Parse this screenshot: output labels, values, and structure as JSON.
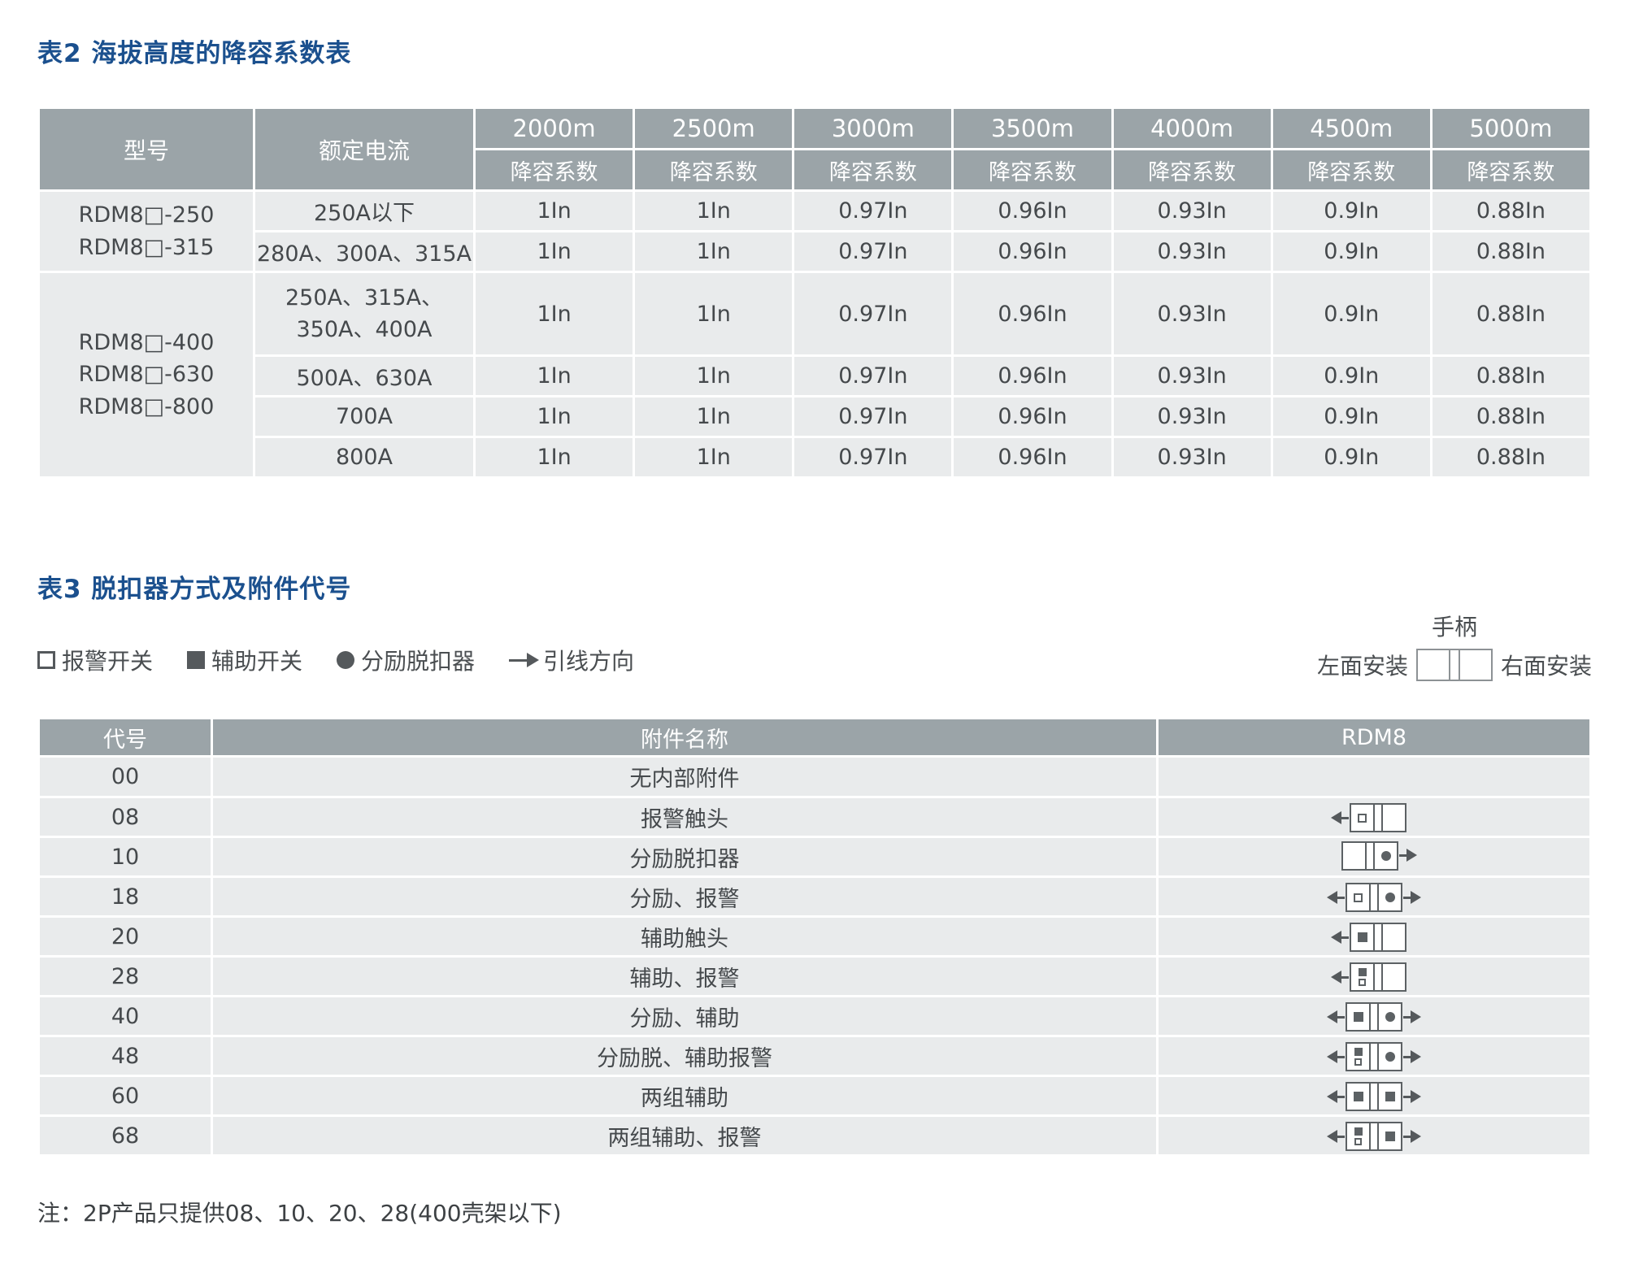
{
  "colors": {
    "title_blue": "#1b508e",
    "table_header_bg": "#9ba4a8",
    "table_row_bg": "#e9ebec",
    "symbol_gray": "#55595c"
  },
  "table2": {
    "title": "表2 海拔高度的降容系数表",
    "col_model": "型号",
    "col_current": "额定电流",
    "altitudes": [
      "2000m",
      "2500m",
      "3000m",
      "3500m",
      "4000m",
      "4500m",
      "5000m"
    ],
    "subheader": "降容系数",
    "groups": [
      {
        "model_text": "RDM8□-250\nRDM8□-315",
        "rows": [
          {
            "current": "250A以下",
            "values": [
              "1In",
              "1In",
              "0.97In",
              "0.96In",
              "0.93In",
              "0.9In",
              "0.88In"
            ]
          },
          {
            "current": "280A、300A、315A",
            "values": [
              "1In",
              "1In",
              "0.97In",
              "0.96In",
              "0.93In",
              "0.9In",
              "0.88In"
            ]
          }
        ]
      },
      {
        "model_text": "RDM8□-400\nRDM8□-630\nRDM8□-800",
        "rows": [
          {
            "current": "250A、315A、\n350A、400A",
            "values": [
              "1In",
              "1In",
              "0.97In",
              "0.96In",
              "0.93In",
              "0.9In",
              "0.88In"
            ]
          },
          {
            "current": "500A、630A",
            "values": [
              "1In",
              "1In",
              "0.97In",
              "0.96In",
              "0.93In",
              "0.9In",
              "0.88In"
            ]
          },
          {
            "current": "700A",
            "values": [
              "1In",
              "1In",
              "0.97In",
              "0.96In",
              "0.93In",
              "0.9In",
              "0.88In"
            ]
          },
          {
            "current": "800A",
            "values": [
              "1In",
              "1In",
              "0.97In",
              "0.96In",
              "0.93In",
              "0.9In",
              "0.88In"
            ]
          }
        ]
      }
    ]
  },
  "table3": {
    "title": "表3 脱扣器方式及附件代号",
    "legend": [
      {
        "symbol": "hollow-square",
        "label": "报警开关"
      },
      {
        "symbol": "filled-square",
        "label": "辅助开关"
      },
      {
        "symbol": "dot",
        "label": "分励脱扣器"
      },
      {
        "symbol": "arrow",
        "label": "引线方向"
      }
    ],
    "handle": {
      "label": "手柄",
      "left": "左面安装",
      "right": "右面安装"
    },
    "headers": {
      "code": "代号",
      "name": "附件名称",
      "product": "RDM8"
    },
    "rows": [
      {
        "code": "00",
        "name": "无内部附件",
        "diagram": null
      },
      {
        "code": "08",
        "name": "报警触头",
        "diagram": {
          "arrows": "left",
          "left": "hollow",
          "right": "none"
        }
      },
      {
        "code": "10",
        "name": "分励脱扣器",
        "diagram": {
          "arrows": "right",
          "left": "none",
          "right": "dot"
        }
      },
      {
        "code": "18",
        "name": "分励、报警",
        "diagram": {
          "arrows": "both",
          "left": "hollow",
          "right": "dot"
        }
      },
      {
        "code": "20",
        "name": "辅助触头",
        "diagram": {
          "arrows": "left",
          "left": "filled",
          "right": "none"
        }
      },
      {
        "code": "28",
        "name": "辅助、报警",
        "diagram": {
          "arrows": "left",
          "left": "stacked",
          "right": "none"
        }
      },
      {
        "code": "40",
        "name": "分励、辅助",
        "diagram": {
          "arrows": "both",
          "left": "filled",
          "right": "dot"
        }
      },
      {
        "code": "48",
        "name": "分励脱、辅助报警",
        "diagram": {
          "arrows": "both",
          "left": "stacked",
          "right": "dot"
        }
      },
      {
        "code": "60",
        "name": "两组辅助",
        "diagram": {
          "arrows": "both",
          "left": "filled",
          "right": "square"
        }
      },
      {
        "code": "68",
        "name": "两组辅助、报警",
        "diagram": {
          "arrows": "both",
          "left": "stacked",
          "right": "square"
        }
      }
    ],
    "note": "注：2P产品只提供08、10、20、28(400壳架以下)"
  }
}
